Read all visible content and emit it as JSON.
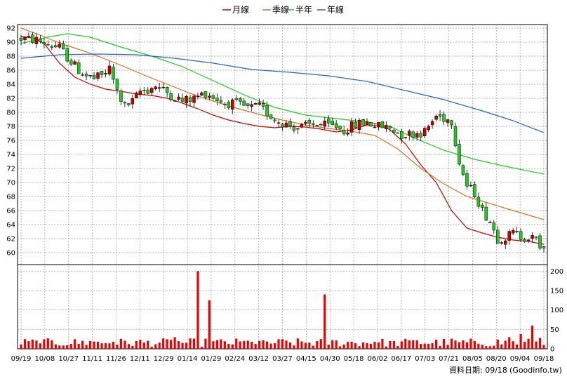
{
  "chart_data": {
    "type": "candlestick",
    "legend": {
      "placement": "top-center",
      "items": [
        {
          "label": "月線",
          "color": "#cc0000"
        },
        {
          "label": "季線",
          "color": "#e07020"
        },
        {
          "label": "半年",
          "color": "#22cc22"
        },
        {
          "label": "年線",
          "color": "#2266cc"
        }
      ]
    },
    "price_axis": {
      "ticks": [
        92,
        90,
        88,
        86,
        84,
        82,
        80,
        78,
        76,
        74,
        72,
        70,
        68,
        66,
        64,
        62,
        60
      ],
      "ylim": [
        58.5,
        92.5
      ]
    },
    "volume_axis": {
      "ticks": [
        200,
        150,
        100,
        50,
        0
      ],
      "ylim": [
        0,
        215
      ]
    },
    "x_labels": [
      "09/19",
      "10/08",
      "10/27",
      "11/11",
      "11/26",
      "12/11",
      "12/29",
      "01/14",
      "01/29",
      "02/24",
      "03/12",
      "03/27",
      "04/15",
      "04/30",
      "05/18",
      "06/02",
      "06/17",
      "07/03",
      "07/21",
      "08/05",
      "08/20",
      "09/04",
      "09/18"
    ],
    "grid": true,
    "colors": {
      "up": "#cc0000",
      "down": "#22cc22",
      "volume": "#ee0000",
      "grid": "#999999"
    },
    "ma": {
      "月線": [
        [
          0,
          90.8
        ],
        [
          3,
          90.6
        ],
        [
          6,
          89.8
        ],
        [
          10,
          87.0
        ],
        [
          14,
          85.0
        ],
        [
          18,
          84.0
        ],
        [
          22,
          83.3
        ],
        [
          26,
          83.0
        ],
        [
          30,
          82.6
        ],
        [
          34,
          82.4
        ],
        [
          38,
          82.0
        ],
        [
          42,
          81.3
        ],
        [
          46,
          80.5
        ],
        [
          50,
          79.6
        ],
        [
          54,
          78.9
        ],
        [
          58,
          78.4
        ],
        [
          62,
          78.0
        ],
        [
          66,
          77.8
        ],
        [
          70,
          78.0
        ],
        [
          74,
          77.9
        ],
        [
          78,
          77.6
        ],
        [
          82,
          77.2
        ],
        [
          86,
          77.5
        ],
        [
          90,
          78.2
        ],
        [
          94,
          78.0
        ],
        [
          96,
          77.5
        ],
        [
          100,
          75.5
        ],
        [
          104,
          72.5
        ],
        [
          108,
          70.0
        ],
        [
          112,
          66.0
        ],
        [
          116,
          63.5
        ],
        [
          120,
          62.8
        ],
        [
          124,
          62.2
        ],
        [
          128,
          61.8
        ],
        [
          132,
          61.6
        ],
        [
          136,
          61.2
        ]
      ],
      "季線": [
        [
          0,
          92.0
        ],
        [
          4,
          91.2
        ],
        [
          8,
          90.3
        ],
        [
          12,
          89.5
        ],
        [
          16,
          88.8
        ],
        [
          20,
          88.0
        ],
        [
          26,
          86.7
        ],
        [
          32,
          85.3
        ],
        [
          38,
          84.0
        ],
        [
          44,
          82.7
        ],
        [
          50,
          81.6
        ],
        [
          56,
          80.6
        ],
        [
          62,
          79.7
        ],
        [
          68,
          78.9
        ],
        [
          74,
          78.2
        ],
        [
          80,
          77.7
        ],
        [
          86,
          77.3
        ],
        [
          92,
          76.7
        ],
        [
          98,
          74.8
        ],
        [
          104,
          72.0
        ],
        [
          110,
          69.8
        ],
        [
          116,
          68.0
        ],
        [
          122,
          67.0
        ],
        [
          128,
          66.0
        ],
        [
          136,
          64.7
        ]
      ],
      "半年": [
        [
          0,
          89.8
        ],
        [
          6,
          90.6
        ],
        [
          12,
          91.2
        ],
        [
          18,
          90.7
        ],
        [
          26,
          89.3
        ],
        [
          34,
          88.0
        ],
        [
          42,
          86.5
        ],
        [
          50,
          84.5
        ],
        [
          58,
          82.5
        ],
        [
          66,
          80.7
        ],
        [
          74,
          79.6
        ],
        [
          82,
          79.1
        ],
        [
          90,
          78.6
        ],
        [
          96,
          78.0
        ],
        [
          102,
          76.4
        ],
        [
          110,
          74.6
        ],
        [
          118,
          73.3
        ],
        [
          126,
          72.3
        ],
        [
          136,
          71.2
        ]
      ],
      "年線": [
        [
          0,
          87.7
        ],
        [
          10,
          88.2
        ],
        [
          20,
          88.3
        ],
        [
          30,
          88.2
        ],
        [
          40,
          87.7
        ],
        [
          50,
          87.0
        ],
        [
          60,
          86.1
        ],
        [
          70,
          85.7
        ],
        [
          80,
          85.2
        ],
        [
          90,
          84.4
        ],
        [
          100,
          83.1
        ],
        [
          110,
          81.8
        ],
        [
          120,
          80.2
        ],
        [
          128,
          78.8
        ],
        [
          136,
          77.1
        ]
      ]
    },
    "candles": [],
    "volumes": []
  },
  "footer": {
    "label": "資料日期: 09/18",
    "source": "(Goodinfo.tw)"
  }
}
